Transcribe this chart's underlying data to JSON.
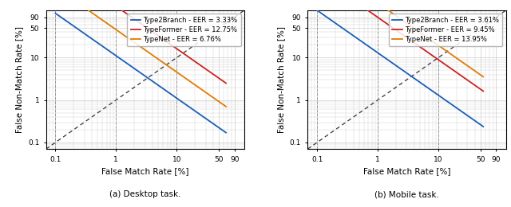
{
  "subplot_titles": [
    "(a) Desktop task.",
    "(b) Mobile task."
  ],
  "xlabel": "False Match Rate [%]",
  "ylabel": "False Non-Match Rate [%]",
  "xticks": [
    0.1,
    1,
    10,
    50,
    90
  ],
  "yticks": [
    0.1,
    1,
    10,
    50,
    90
  ],
  "dashed_vlines": [
    0.1,
    1,
    10
  ],
  "desktop": {
    "curves": [
      {
        "label": "Type2Branch - EER = 3.33%",
        "color": "#1a5eb8",
        "eer": 3.33,
        "fmr_start": 0.1,
        "fmr_end": 65
      },
      {
        "label": "TypeFormer - EER = 12.75%",
        "color": "#cc2222",
        "eer": 12.75,
        "fmr_start": 0.1,
        "fmr_end": 65
      },
      {
        "label": "TypeNet - EER = 6.76%",
        "color": "#e07b00",
        "eer": 6.76,
        "fmr_start": 0.1,
        "fmr_end": 65
      }
    ]
  },
  "mobile": {
    "curves": [
      {
        "label": "Type2Branch - EER = 3.61%",
        "color": "#1a5eb8",
        "eer": 3.61,
        "fmr_start": 0.1,
        "fmr_end": 55
      },
      {
        "label": "TypeFormer - EER = 9.45%",
        "color": "#cc2222",
        "eer": 9.45,
        "fmr_start": 0.1,
        "fmr_end": 55
      },
      {
        "label": "TypeNet - EER = 13.95%",
        "color": "#e07b00",
        "eer": 13.95,
        "fmr_start": 0.1,
        "fmr_end": 55
      }
    ]
  },
  "grid_color": "#cccccc",
  "diagonal_color": "#333333",
  "vline_color": "#999999",
  "legend_fontsize": 6.0,
  "axis_fontsize": 7.5,
  "tick_fontsize": 6.5,
  "xlim": [
    0.07,
    130
  ],
  "ylim": [
    0.07,
    130
  ]
}
